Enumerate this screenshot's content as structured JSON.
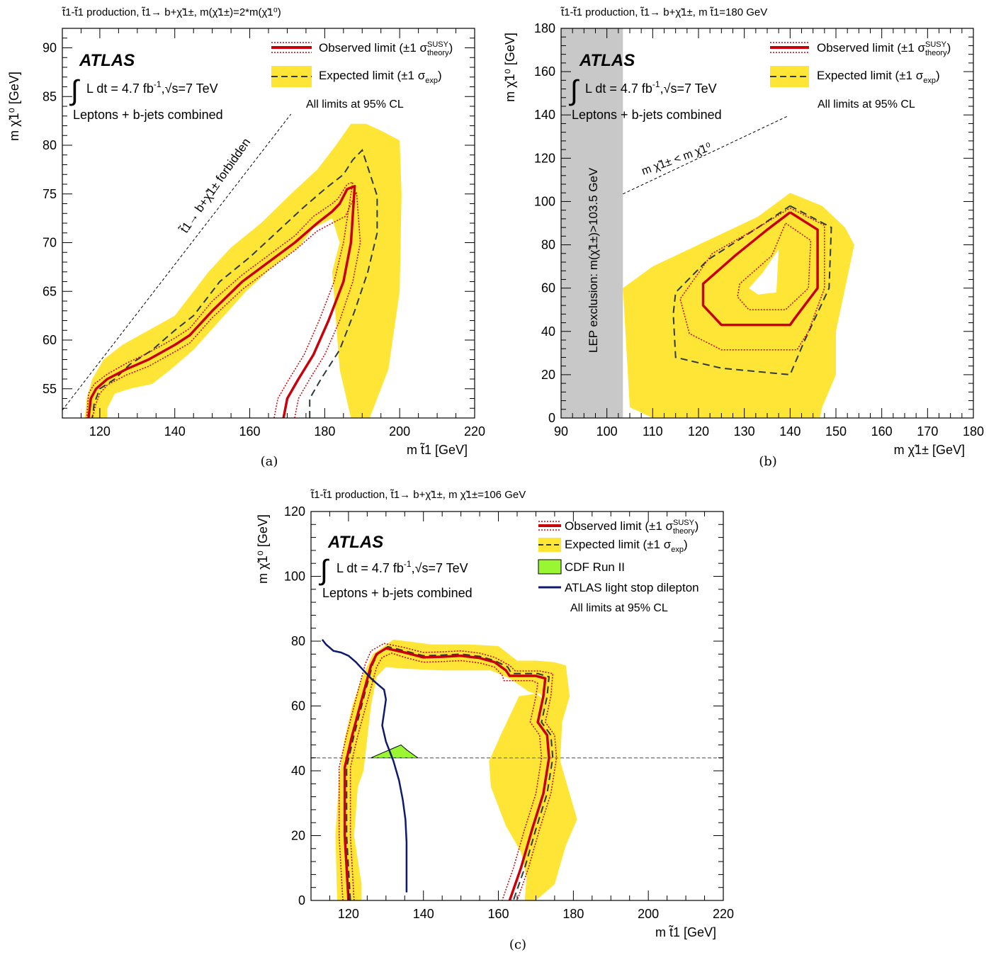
{
  "colors": {
    "band": "#ffe535",
    "observed": "#c8000a",
    "expected": "#2f3a3a",
    "cdf": "#9af533",
    "dilepton": "#0e1a6e",
    "lep": "#c8c8c8"
  },
  "common": {
    "atlas": "ATLAS",
    "lumi": "L dt = 4.7 fb",
    "lumi_sup": "-1",
    "energy": ",√s=7 TeV",
    "channel": "Leptons + b-jets combined",
    "cl_note": "All limits at 95% CL",
    "legend_observed": "Observed limit (±1 σ",
    "legend_observed_sup": "SUSY",
    "legend_observed_sub": "theory",
    "legend_expected": "Expected limit (±1 σ",
    "legend_expected_sub": "exp"
  },
  "chart_data": [
    {
      "panel": "(a)",
      "type": "line",
      "title": "t̃1-t̃1 production, t̃1→ b+χ̃1±, m(χ̃1±)=2*m(χ̃1⁰)",
      "xlabel": "m t̃1 [GeV]",
      "ylabel": "m χ̃1⁰ [GeV]",
      "xlim": [
        110,
        220
      ],
      "ylim": [
        52,
        92
      ],
      "xticks": [
        120,
        140,
        160,
        180,
        200,
        220
      ],
      "yticks": [
        55,
        60,
        65,
        70,
        75,
        80,
        85,
        90
      ],
      "legend_position": "top-right",
      "annotation": "t̃1→ b+χ̃1± forbidden",
      "forbidden_line": {
        "x": [
          110,
          171
        ],
        "y": [
          52.8,
          83.2
        ]
      },
      "band": {
        "x": [
          116,
          116.5,
          118,
          121,
          126,
          133,
          140,
          144,
          149,
          155,
          163,
          171,
          178,
          183,
          187,
          191,
          195,
          200,
          200.5,
          200,
          197,
          192,
          187,
          184,
          183,
          182,
          184,
          182,
          177,
          173,
          166,
          159,
          152,
          145,
          139,
          134,
          128,
          124,
          122,
          122,
          116
        ],
        "y": [
          52,
          54,
          56,
          58,
          59.5,
          61,
          62.5,
          64.5,
          67,
          69.5,
          72,
          75,
          77.5,
          80,
          82.2,
          82.2,
          81.5,
          80.5,
          75,
          65,
          57,
          52,
          52,
          57,
          62,
          67,
          70,
          72.5,
          71.5,
          69.5,
          67.5,
          65,
          62,
          59,
          57,
          55.5,
          55,
          54.5,
          53,
          52,
          52
        ]
      },
      "observed": {
        "x": [
          169,
          170,
          173,
          177,
          181,
          185,
          187,
          188,
          186,
          184,
          182,
          178,
          172,
          165,
          158,
          150,
          144,
          140,
          133,
          127,
          122,
          119,
          117.6,
          117
        ],
        "y": [
          52,
          54,
          56,
          58.5,
          62,
          66,
          70,
          75.8,
          75.5,
          74,
          73.2,
          72,
          70,
          68,
          66,
          63,
          60.5,
          59.5,
          58,
          57,
          56,
          55,
          54,
          52
        ]
      },
      "observed_upper": {
        "x": [
          166.5,
          167.5,
          170.5,
          174.5,
          178.5,
          182.5,
          185,
          187.5,
          186,
          183.5,
          182,
          177,
          172,
          165,
          158,
          150,
          144,
          140,
          133,
          127,
          122,
          118.5,
          117,
          116.5
        ],
        "y": [
          52,
          54,
          56,
          58.5,
          62,
          66,
          70,
          76.2,
          76,
          74.5,
          74,
          72.7,
          70.7,
          68.7,
          66.7,
          64,
          61.2,
          60.2,
          58.7,
          57.6,
          56.5,
          55.5,
          54.5,
          52
        ]
      },
      "observed_lower": {
        "x": [
          172,
          173,
          176,
          180,
          184,
          187.5,
          189.5,
          188.5,
          185.5,
          183,
          178,
          172,
          165,
          158,
          150,
          144,
          140,
          133,
          127,
          122,
          120,
          119,
          118
        ],
        "y": [
          52,
          54,
          56,
          58.5,
          62,
          66,
          70,
          75.2,
          72.7,
          72.2,
          71.2,
          69.2,
          67.2,
          65.2,
          62.3,
          59.7,
          58.8,
          57.3,
          56.4,
          55.4,
          54.5,
          53.5,
          52
        ]
      },
      "expected": {
        "x": [
          176,
          176,
          179,
          184,
          188,
          191.5,
          194,
          194,
          190,
          187.5,
          185,
          180,
          174,
          167,
          160,
          152,
          145,
          140,
          134,
          128,
          124,
          120,
          118.5,
          118
        ],
        "y": [
          52,
          54,
          56,
          59,
          63,
          67,
          71,
          74.8,
          79.5,
          78.5,
          77,
          75.5,
          73.5,
          71,
          68.5,
          66,
          62.5,
          61,
          59,
          57.5,
          56,
          55,
          53.5,
          52
        ]
      }
    },
    {
      "panel": "(b)",
      "type": "line",
      "title": "t̃1-t̃1 production, t̃1→ b+χ̃1±, m t̃1=180 GeV",
      "xlabel": "m χ̃1± [GeV]",
      "ylabel": "m χ̃1⁰ [GeV]",
      "xlim": [
        90,
        180
      ],
      "ylim": [
        0,
        180
      ],
      "xticks": [
        90,
        100,
        110,
        120,
        130,
        140,
        150,
        160,
        170,
        180
      ],
      "yticks": [
        0,
        20,
        40,
        60,
        80,
        100,
        120,
        140,
        160,
        180
      ],
      "legend_position": "top-right",
      "lep_label": "LEP exclusion: m(χ̃1±)>103.5 GeV",
      "lep_exclusion_x": [
        90,
        103.5
      ],
      "kinematic_label": "m χ̃1± < m χ̃1⁰",
      "kinematic_line": {
        "x": [
          103.5,
          139.5
        ],
        "y": [
          103.5,
          139.5
        ]
      },
      "band": {
        "x": [
          103.5,
          110,
          122,
          133,
          140,
          147,
          152,
          154,
          152,
          150,
          150,
          147,
          146.5,
          145,
          130,
          110,
          105,
          103.5
        ],
        "y": [
          60,
          70,
          82,
          93,
          104,
          98,
          88,
          80,
          60,
          40,
          20,
          5,
          0,
          0,
          0,
          0,
          5,
          60
        ]
      },
      "band_hole": {
        "x": [
          137.5,
          137,
          133,
          131,
          134
        ],
        "y": [
          78,
          58,
          57,
          60,
          67
        ]
      },
      "observed": {
        "x": [
          140,
          146,
          146,
          141,
          140,
          125,
          121,
          121,
          128,
          135,
          140
        ],
        "y": [
          95,
          87,
          60,
          46,
          43,
          43,
          52,
          62,
          75,
          87,
          95
        ]
      },
      "observed_outer": {
        "x": [
          140,
          147.5,
          147.5,
          144,
          141.5,
          125,
          118,
          116,
          123,
          133,
          140
        ],
        "y": [
          97,
          89,
          60,
          40,
          31.5,
          31.5,
          39,
          55,
          76,
          88,
          97
        ]
      },
      "observed_inner": {
        "x": [
          139,
          144.5,
          144,
          140,
          139,
          131,
          128.5,
          129,
          136,
          139
        ],
        "y": [
          90,
          82,
          60,
          52,
          50,
          50,
          56,
          62,
          75,
          90
        ]
      },
      "expected": {
        "x": [
          140,
          149,
          148.5,
          143,
          140,
          125,
          115,
          114.5,
          115,
          122,
          133,
          140
        ],
        "y": [
          98,
          88,
          60,
          35,
          20,
          23,
          28,
          48,
          58,
          73,
          88,
          98
        ]
      }
    },
    {
      "panel": "(c)",
      "type": "line",
      "title": "t̃1-t̃1 production, t̃1→ b+χ̃1±, m χ̃1±=106 GeV",
      "xlabel": "m t̃1 [GeV]",
      "ylabel": "m χ̃1⁰ [GeV]",
      "xlim": [
        110,
        220
      ],
      "ylim": [
        0,
        120
      ],
      "xticks": [
        120,
        140,
        160,
        180,
        200,
        220
      ],
      "yticks": [
        0,
        20,
        40,
        60,
        80,
        100,
        120
      ],
      "legend_position": "top-right",
      "cdf_label": "CDF Run II",
      "dilepton_label": "ATLAS light stop dilepton",
      "dashed_line_y": 44,
      "band": {
        "x": [
          117,
          116.5,
          117.5,
          119,
          121,
          123.5,
          126.5,
          132,
          142,
          152,
          160,
          165,
          170,
          175,
          178,
          179,
          177,
          176.5,
          178.5,
          181,
          178,
          175,
          170,
          167,
          167.5,
          166,
          162,
          158,
          157.5,
          161,
          165.5,
          171,
          172,
          170.5,
          168,
          163,
          158,
          145,
          135,
          130,
          127.5,
          126,
          125,
          124,
          122.5,
          121.5,
          123.5,
          123.5,
          117
        ],
        "y": [
          0,
          20,
          38,
          50,
          60,
          68.5,
          76,
          80.5,
          79,
          79,
          78.5,
          74,
          74,
          73.5,
          72.5,
          63,
          55,
          43,
          35,
          25,
          17,
          5,
          0,
          0,
          7,
          15,
          23,
          35,
          43,
          52,
          63,
          64,
          62,
          63.5,
          64.5,
          68.5,
          71,
          71,
          71.5,
          72,
          69,
          60,
          50,
          40,
          35,
          20,
          5,
          0,
          0
        ]
      },
      "observed": {
        "x": [
          120,
          119.5,
          119,
          119,
          121,
          124,
          126,
          127.5,
          130,
          135,
          140,
          145,
          150,
          155,
          159,
          162,
          163,
          170,
          172.5,
          172,
          170.5,
          173,
          173.5,
          172,
          169,
          166,
          163
        ],
        "y": [
          0,
          10,
          20,
          41,
          51,
          64,
          72.5,
          76,
          77.8,
          76.5,
          75,
          75.2,
          75.5,
          74.8,
          73.5,
          71,
          69.3,
          69.3,
          68.5,
          63,
          55,
          51,
          44,
          33,
          22,
          10,
          0
        ]
      },
      "observed_upper": {
        "x": [
          118.5,
          118,
          117.5,
          117.5,
          119.5,
          122.5,
          124.5,
          126,
          129.5,
          135,
          140,
          145,
          150,
          155,
          159,
          163,
          164.5,
          171,
          174.5,
          174,
          172.5,
          175,
          175.5,
          174,
          171,
          168,
          165
        ],
        "y": [
          0,
          10,
          20,
          41,
          51,
          64.5,
          73,
          77,
          79.3,
          78,
          76.5,
          76.7,
          77,
          76.3,
          75,
          72.5,
          70.8,
          70.8,
          70,
          63,
          55,
          51,
          44,
          33,
          22,
          10,
          0
        ]
      },
      "observed_lower": {
        "x": [
          121.5,
          121,
          120.5,
          120.5,
          122.5,
          125.5,
          127.5,
          129,
          131.5,
          135,
          140,
          145,
          150,
          155,
          159,
          161,
          161.5,
          169,
          170.5,
          170,
          168.5,
          171,
          171.5,
          170,
          167,
          164,
          161
        ],
        "y": [
          0,
          10,
          20,
          41,
          51,
          63.5,
          72,
          75,
          76.3,
          75,
          73.5,
          73.7,
          74,
          73.3,
          72,
          69.5,
          67.8,
          67.8,
          67,
          63,
          55,
          51,
          44,
          33,
          22,
          10,
          0
        ]
      },
      "expected": {
        "x": [
          120.5,
          120,
          119.5,
          119.5,
          121.5,
          124.5,
          126.5,
          128,
          130.5,
          135,
          140,
          145,
          150,
          155,
          159,
          162.5,
          163.5,
          170.5,
          173.5,
          173,
          171.5,
          174,
          174.5,
          173,
          170,
          167,
          164
        ],
        "y": [
          0,
          10,
          20,
          41,
          51,
          64.5,
          73,
          76.5,
          78.3,
          77,
          75.5,
          75.7,
          76,
          75.3,
          74,
          72,
          70,
          70,
          69,
          63,
          55,
          51,
          44,
          33,
          22,
          10,
          0
        ]
      },
      "cdf": {
        "x": [
          126,
          129,
          132,
          134,
          135.5,
          138.5,
          126
        ],
        "y": [
          44,
          45.5,
          47,
          48,
          46.5,
          44,
          44
        ]
      },
      "dilepton": {
        "x": [
          113,
          114,
          116,
          118,
          120,
          122,
          124,
          126,
          128,
          129.5,
          130,
          129.5,
          129,
          130,
          132,
          133.5,
          134.5,
          135.2,
          135.5,
          135.5,
          135.5
        ],
        "y": [
          80.5,
          79,
          77,
          76.5,
          75.5,
          73.5,
          71,
          68.5,
          66.5,
          65,
          62,
          58,
          54,
          49,
          43,
          37,
          31,
          25,
          18,
          10,
          2.5
        ]
      }
    }
  ],
  "captions": [
    "(a)",
    "(b)",
    "(c)"
  ]
}
